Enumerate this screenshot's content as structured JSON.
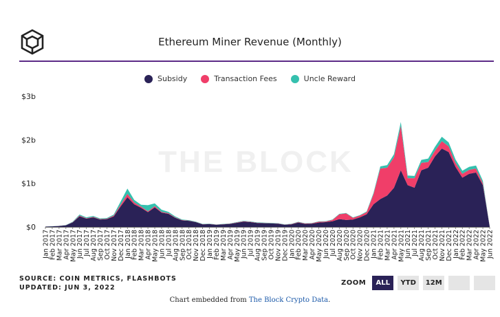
{
  "header": {
    "title": "Ethereum Miner Revenue (Monthly)",
    "logo_icon": "the-block-cube-icon"
  },
  "colors": {
    "subsidy": "#2a2257",
    "transaction_fees": "#f03e69",
    "uncle_reward": "#35c0ae",
    "rule": "#5b2a86"
  },
  "watermark": "THE BLOCK",
  "chart_data": {
    "type": "area",
    "stacked": true,
    "title": "Ethereum Miner Revenue (Monthly)",
    "xlabel": "",
    "ylabel": "",
    "ylim": [
      0,
      3000000000
    ],
    "y_ticks": [
      {
        "value": 0,
        "label": "$0"
      },
      {
        "value": 1000000000,
        "label": "$1b"
      },
      {
        "value": 2000000000,
        "label": "$2b"
      },
      {
        "value": 3000000000,
        "label": "$3b"
      }
    ],
    "grid": false,
    "legend_position": "top-center",
    "categories": [
      "Jan 2017",
      "Feb 2017",
      "Mar 2017",
      "Apr 2017",
      "May 2017",
      "Jun 2017",
      "Jul 2017",
      "Aug 2017",
      "Sep 2017",
      "Oct 2017",
      "Nov 2017",
      "Dec 2017",
      "Jan 2018",
      "Feb 2018",
      "Mar 2018",
      "Apr 2018",
      "May 2018",
      "Jun 2018",
      "Jul 2018",
      "Aug 2018",
      "Sep 2018",
      "Oct 2018",
      "Nov 2018",
      "Dec 2018",
      "Jan 2019",
      "Feb 2019",
      "Mar 2019",
      "Apr 2019",
      "May 2019",
      "Jun 2019",
      "Jul 2019",
      "Aug 2019",
      "Sep 2019",
      "Oct 2019",
      "Nov 2019",
      "Dec 2019",
      "Jan 2020",
      "Feb 2020",
      "Mar 2020",
      "Apr 2020",
      "May 2020",
      "Jun 2020",
      "Jul 2020",
      "Aug 2020",
      "Sep 2020",
      "Oct 2020",
      "Nov 2020",
      "Dec 2020",
      "Jan 2021",
      "Feb 2021",
      "Mar 2021",
      "Apr 2021",
      "May 2021",
      "Jun 2021",
      "Jul 2021",
      "Aug 2021",
      "Sep 2021",
      "Oct 2021",
      "Nov 2021",
      "Dec 2021",
      "Jan 2022",
      "Feb 2022",
      "Mar 2022",
      "Apr 2022",
      "May 2022",
      "Jun 2022"
    ],
    "series": [
      {
        "name": "Subsidy",
        "color": "#2a2257",
        "values": [
          8000000,
          14000000,
          22000000,
          38000000,
          105000000,
          245000000,
          190000000,
          220000000,
          170000000,
          180000000,
          240000000,
          470000000,
          680000000,
          520000000,
          440000000,
          340000000,
          450000000,
          330000000,
          300000000,
          210000000,
          150000000,
          140000000,
          110000000,
          60000000,
          65000000,
          50000000,
          60000000,
          70000000,
          95000000,
          120000000,
          110000000,
          90000000,
          85000000,
          80000000,
          75000000,
          50000000,
          60000000,
          100000000,
          70000000,
          75000000,
          100000000,
          110000000,
          130000000,
          180000000,
          160000000,
          170000000,
          220000000,
          290000000,
          520000000,
          640000000,
          720000000,
          900000000,
          1300000000,
          960000000,
          900000000,
          1300000000,
          1360000000,
          1620000000,
          1800000000,
          1720000000,
          1380000000,
          1130000000,
          1220000000,
          1250000000,
          960000000,
          10000000
        ]
      },
      {
        "name": "Transaction Fees",
        "color": "#f03e69",
        "values": [
          0,
          0,
          1000000,
          2000000,
          5000000,
          15000000,
          10000000,
          10000000,
          10000000,
          10000000,
          20000000,
          40000000,
          80000000,
          40000000,
          25000000,
          20000000,
          30000000,
          15000000,
          15000000,
          10000000,
          8000000,
          6000000,
          5000000,
          4000000,
          4000000,
          3000000,
          4000000,
          5000000,
          8000000,
          10000000,
          8000000,
          6000000,
          5000000,
          5000000,
          5000000,
          4000000,
          8000000,
          10000000,
          8000000,
          10000000,
          20000000,
          15000000,
          30000000,
          110000000,
          150000000,
          40000000,
          40000000,
          50000000,
          230000000,
          700000000,
          640000000,
          700000000,
          1020000000,
          160000000,
          220000000,
          170000000,
          130000000,
          130000000,
          170000000,
          130000000,
          90000000,
          90000000,
          90000000,
          90000000,
          40000000,
          1000000
        ]
      },
      {
        "name": "Uncle Reward",
        "color": "#35c0ae",
        "values": [
          0,
          1000000,
          2000000,
          3000000,
          10000000,
          25000000,
          20000000,
          20000000,
          15000000,
          15000000,
          25000000,
          70000000,
          120000000,
          60000000,
          45000000,
          140000000,
          60000000,
          50000000,
          30000000,
          20000000,
          12000000,
          10000000,
          8000000,
          5000000,
          5000000,
          4000000,
          5000000,
          5000000,
          7000000,
          10000000,
          8000000,
          8000000,
          8000000,
          7000000,
          6000000,
          5000000,
          5000000,
          8000000,
          6000000,
          6000000,
          8000000,
          8000000,
          10000000,
          10000000,
          10000000,
          10000000,
          10000000,
          15000000,
          30000000,
          50000000,
          60000000,
          70000000,
          90000000,
          60000000,
          50000000,
          70000000,
          80000000,
          90000000,
          100000000,
          90000000,
          80000000,
          70000000,
          70000000,
          70000000,
          60000000,
          1000000
        ]
      }
    ]
  },
  "footer": {
    "source": "SOURCE: COIN METRICS, FLASHBOTS",
    "updated": "UPDATED: JUN 3, 2022",
    "zoom_label": "ZOOM",
    "zoom_buttons": [
      "ALL",
      "YTD",
      "12M",
      "",
      ""
    ],
    "embed_prefix": "Chart embedded from ",
    "embed_link": "The Block Crypto Data",
    "embed_suffix": "."
  }
}
